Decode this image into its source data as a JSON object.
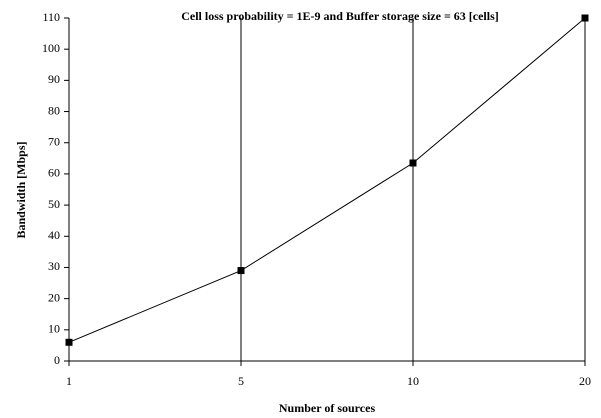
{
  "chart_data": {
    "type": "line",
    "title": "Cell loss probability = 1E-9 and Buffer storage size = 63 [cells]",
    "x_label": "Number of sources",
    "y_label": "Bandwidth [Mbps]",
    "categories": [
      "1",
      "5",
      "10",
      "20"
    ],
    "values": [
      6,
      29,
      63.5,
      110
    ],
    "color": "#000000",
    "ylim": [
      0,
      110
    ],
    "yticks": [
      0,
      10,
      20,
      30,
      40,
      50,
      60,
      70,
      80,
      90,
      100,
      110
    ],
    "grid": "x"
  }
}
